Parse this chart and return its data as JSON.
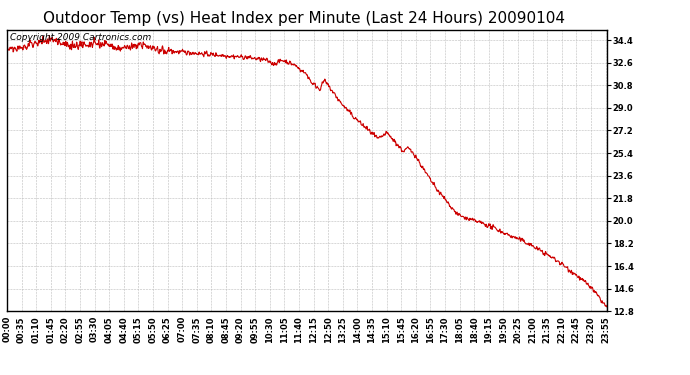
{
  "title": "Outdoor Temp (vs) Heat Index per Minute (Last 24 Hours) 20090104",
  "copyright_text": "Copyright 2009 Cartronics.com",
  "line_color": "#cc0000",
  "bg_color": "#ffffff",
  "plot_bg_color": "#ffffff",
  "grid_color": "#bbbbbb",
  "ylim": [
    12.8,
    35.2
  ],
  "yticks": [
    12.8,
    14.6,
    16.4,
    18.2,
    20.0,
    21.8,
    23.6,
    25.4,
    27.2,
    29.0,
    30.8,
    32.6,
    34.4
  ],
  "xtick_labels": [
    "00:00",
    "00:35",
    "01:10",
    "01:45",
    "02:20",
    "02:55",
    "03:30",
    "04:05",
    "04:40",
    "05:15",
    "05:50",
    "06:25",
    "07:00",
    "07:35",
    "08:10",
    "08:45",
    "09:20",
    "09:55",
    "10:30",
    "11:05",
    "11:40",
    "12:15",
    "12:50",
    "13:25",
    "14:00",
    "14:35",
    "15:10",
    "15:45",
    "16:20",
    "16:55",
    "17:30",
    "18:05",
    "18:40",
    "19:15",
    "19:50",
    "20:25",
    "21:00",
    "21:35",
    "22:10",
    "22:45",
    "23:20",
    "23:55"
  ],
  "title_fontsize": 11,
  "tick_fontsize": 6,
  "copyright_fontsize": 6.5,
  "segments": [
    {
      "t0": 0,
      "t1": 60,
      "v0": 33.6,
      "v1": 34.0
    },
    {
      "t0": 60,
      "t1": 100,
      "v0": 34.0,
      "v1": 34.5
    },
    {
      "t0": 100,
      "t1": 160,
      "v0": 34.5,
      "v1": 33.9
    },
    {
      "t0": 160,
      "t1": 240,
      "v0": 33.9,
      "v1": 34.1
    },
    {
      "t0": 240,
      "t1": 260,
      "v0": 34.1,
      "v1": 33.7
    },
    {
      "t0": 260,
      "t1": 340,
      "v0": 33.7,
      "v1": 34.0
    },
    {
      "t0": 340,
      "t1": 360,
      "v0": 34.0,
      "v1": 33.6
    },
    {
      "t0": 360,
      "t1": 580,
      "v0": 33.6,
      "v1": 33.0
    },
    {
      "t0": 580,
      "t1": 620,
      "v0": 33.0,
      "v1": 32.8
    },
    {
      "t0": 620,
      "t1": 640,
      "v0": 32.8,
      "v1": 32.5
    },
    {
      "t0": 640,
      "t1": 660,
      "v0": 32.5,
      "v1": 32.8
    },
    {
      "t0": 660,
      "t1": 690,
      "v0": 32.8,
      "v1": 32.4
    },
    {
      "t0": 690,
      "t1": 720,
      "v0": 32.4,
      "v1": 31.6
    },
    {
      "t0": 720,
      "t1": 730,
      "v0": 31.6,
      "v1": 31.0
    },
    {
      "t0": 730,
      "t1": 750,
      "v0": 31.0,
      "v1": 30.5
    },
    {
      "t0": 750,
      "t1": 760,
      "v0": 30.5,
      "v1": 31.2
    },
    {
      "t0": 760,
      "t1": 780,
      "v0": 31.2,
      "v1": 30.3
    },
    {
      "t0": 780,
      "t1": 800,
      "v0": 30.3,
      "v1": 29.4
    },
    {
      "t0": 800,
      "t1": 830,
      "v0": 29.4,
      "v1": 28.3
    },
    {
      "t0": 830,
      "t1": 870,
      "v0": 28.3,
      "v1": 27.1
    },
    {
      "t0": 870,
      "t1": 890,
      "v0": 27.1,
      "v1": 26.5
    },
    {
      "t0": 890,
      "t1": 910,
      "v0": 26.5,
      "v1": 27.0
    },
    {
      "t0": 910,
      "t1": 930,
      "v0": 27.0,
      "v1": 26.3
    },
    {
      "t0": 930,
      "t1": 950,
      "v0": 26.3,
      "v1": 25.5
    },
    {
      "t0": 950,
      "t1": 960,
      "v0": 25.5,
      "v1": 25.8
    },
    {
      "t0": 960,
      "t1": 975,
      "v0": 25.8,
      "v1": 25.4
    },
    {
      "t0": 975,
      "t1": 1000,
      "v0": 25.4,
      "v1": 24.0
    },
    {
      "t0": 1000,
      "t1": 1030,
      "v0": 24.0,
      "v1": 22.5
    },
    {
      "t0": 1030,
      "t1": 1060,
      "v0": 22.5,
      "v1": 21.3
    },
    {
      "t0": 1060,
      "t1": 1080,
      "v0": 21.3,
      "v1": 20.5
    },
    {
      "t0": 1080,
      "t1": 1100,
      "v0": 20.5,
      "v1": 20.2
    },
    {
      "t0": 1100,
      "t1": 1120,
      "v0": 20.2,
      "v1": 20.0
    },
    {
      "t0": 1120,
      "t1": 1140,
      "v0": 20.0,
      "v1": 19.8
    },
    {
      "t0": 1140,
      "t1": 1170,
      "v0": 19.8,
      "v1": 19.4
    },
    {
      "t0": 1170,
      "t1": 1200,
      "v0": 19.4,
      "v1": 18.9
    },
    {
      "t0": 1200,
      "t1": 1230,
      "v0": 18.9,
      "v1": 18.5
    },
    {
      "t0": 1230,
      "t1": 1260,
      "v0": 18.5,
      "v1": 18.0
    },
    {
      "t0": 1260,
      "t1": 1290,
      "v0": 18.0,
      "v1": 17.4
    },
    {
      "t0": 1290,
      "t1": 1320,
      "v0": 17.4,
      "v1": 16.8
    },
    {
      "t0": 1320,
      "t1": 1360,
      "v0": 16.8,
      "v1": 15.8
    },
    {
      "t0": 1360,
      "t1": 1400,
      "v0": 15.8,
      "v1": 14.7
    },
    {
      "t0": 1400,
      "t1": 1440,
      "v0": 14.7,
      "v1": 13.0
    }
  ]
}
